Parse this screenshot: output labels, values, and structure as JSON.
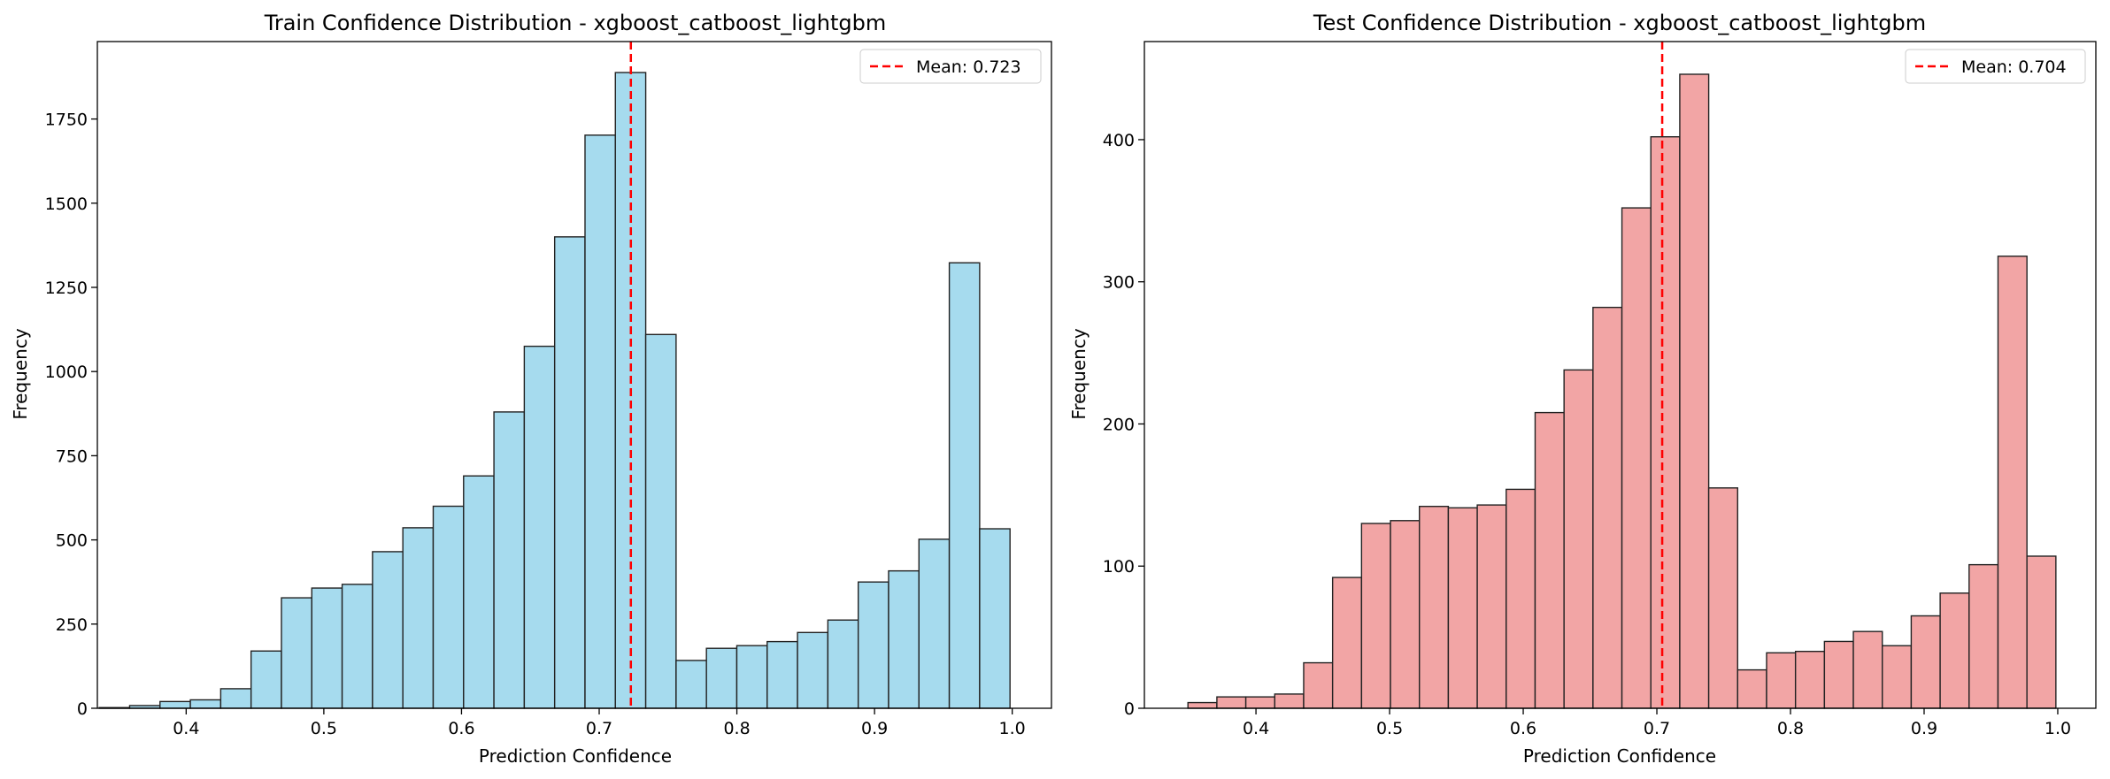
{
  "chart_data": [
    {
      "type": "bar",
      "title": "Train Confidence Distribution - xgboost_catboost_lightgbm",
      "xlabel": "Prediction Confidence",
      "ylabel": "Frequency",
      "xlim": [
        0.3355,
        1.0285
      ],
      "ylim": [
        0,
        1980
      ],
      "xticks": [
        0.4,
        0.5,
        0.6,
        0.7,
        0.8,
        0.9,
        1.0
      ],
      "xtick_labels": [
        "0.4",
        "0.5",
        "0.6",
        "0.7",
        "0.8",
        "0.9",
        "1.0"
      ],
      "yticks": [
        0,
        250,
        500,
        750,
        1000,
        1250,
        1500,
        1750
      ],
      "ytick_labels": [
        "0",
        "250",
        "500",
        "750",
        "1000",
        "1250",
        "1500",
        "1750"
      ],
      "bin_start": 0.3369,
      "bin_width": 0.02205,
      "values": [
        2,
        8,
        20,
        25,
        58,
        170,
        328,
        357,
        368,
        465,
        536,
        600,
        690,
        880,
        1075,
        1400,
        1702,
        1888,
        1110,
        142,
        178,
        186,
        198,
        225,
        262,
        375,
        408,
        502,
        1323,
        533
      ],
      "bar_color": "#a6dbee",
      "edge_color": "#222222",
      "mean": 0.723,
      "mean_label": "Mean: 0.723",
      "mean_color": "#ff0000",
      "legend_position": "top-right"
    },
    {
      "type": "bar",
      "title": "Test Confidence Distribution - xgboost_catboost_lightgbm",
      "xlabel": "Prediction Confidence",
      "ylabel": "Frequency",
      "xlim": [
        0.3165,
        1.0285
      ],
      "ylim": [
        0,
        469
      ],
      "xticks": [
        0.4,
        0.5,
        0.6,
        0.7,
        0.8,
        0.9,
        1.0
      ],
      "xtick_labels": [
        "0.4",
        "0.5",
        "0.6",
        "0.7",
        "0.8",
        "0.9",
        "1.0"
      ],
      "yticks": [
        0,
        100,
        200,
        300,
        400
      ],
      "ytick_labels": [
        "0",
        "100",
        "200",
        "300",
        "400"
      ],
      "bin_start": 0.3491,
      "bin_width": 0.02165,
      "values": [
        4,
        8,
        8,
        10,
        32,
        92,
        130,
        132,
        142,
        141,
        143,
        154,
        208,
        238,
        282,
        352,
        402,
        446,
        155,
        27,
        39,
        40,
        47,
        54,
        44,
        65,
        81,
        101,
        318,
        107
      ],
      "bar_color": "#f2a5a5",
      "edge_color": "#222222",
      "mean": 0.704,
      "mean_label": "Mean: 0.704",
      "mean_color": "#ff0000",
      "legend_position": "top-right"
    }
  ]
}
